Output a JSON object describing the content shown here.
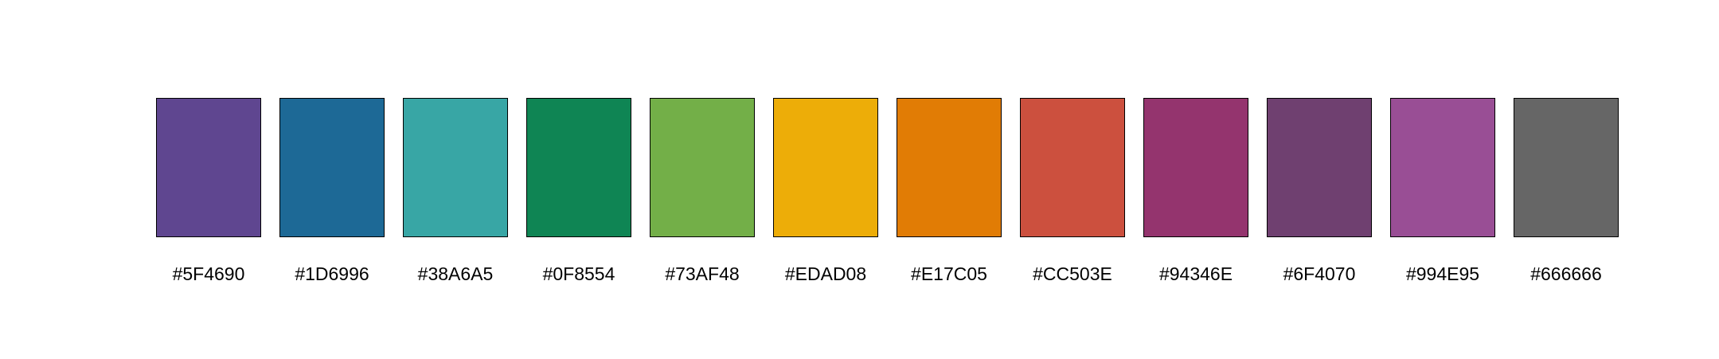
{
  "swatches": [
    {
      "label": "#5F4690",
      "color": "#5F4690"
    },
    {
      "label": "#1D6996",
      "color": "#1D6996"
    },
    {
      "label": "#38A6A5",
      "color": "#38A6A5"
    },
    {
      "label": "#0F8554",
      "color": "#0F8554"
    },
    {
      "label": "#73AF48",
      "color": "#73AF48"
    },
    {
      "label": "#EDAD08",
      "color": "#EDAD08"
    },
    {
      "label": "#E17C05",
      "color": "#E17C05"
    },
    {
      "label": "#CC503E",
      "color": "#CC503E"
    },
    {
      "label": "#94346E",
      "color": "#94346E"
    },
    {
      "label": "#6F4070",
      "color": "#6F4070"
    },
    {
      "label": "#994E95",
      "color": "#994E95"
    },
    {
      "label": "#666666",
      "color": "#666666"
    }
  ]
}
